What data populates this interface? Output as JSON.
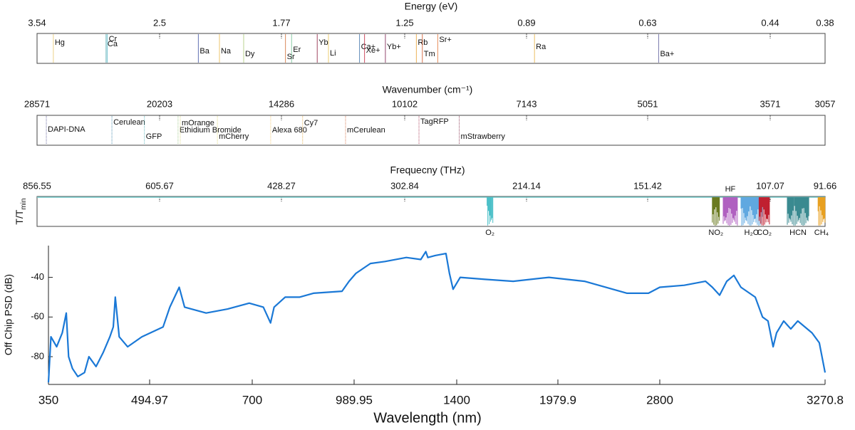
{
  "chart_data": [
    {
      "type": "markers",
      "title": "Energy (eV)",
      "xticks": [
        3.54,
        2.5,
        1.77,
        1.25,
        0.89,
        0.63,
        0.44,
        0.38
      ],
      "markers": [
        {
          "label": "Hg",
          "value": 3.38,
          "color": "#e8c86a"
        },
        {
          "label": "Cr",
          "value": 2.9,
          "color": "#5fb8c8"
        },
        {
          "label": "Ca",
          "value": 2.91,
          "color": "#3aa0a8"
        },
        {
          "label": "Ba",
          "value": 2.24,
          "color": "#3a4fa0"
        },
        {
          "label": "Na",
          "value": 2.11,
          "color": "#e8b84a"
        },
        {
          "label": "Dy",
          "value": 1.97,
          "color": "#a8c870"
        },
        {
          "label": "Er",
          "value": 1.72,
          "color": "#6cc090"
        },
        {
          "label": "Sr",
          "value": 1.75,
          "color": "#d06a30"
        },
        {
          "label": "Yb",
          "value": 1.6,
          "color": "#8a1a3a"
        },
        {
          "label": "Li",
          "value": 1.55,
          "color": "#e8c050"
        },
        {
          "label": "Ca+",
          "value": 1.42,
          "color": "#3a70a8"
        },
        {
          "label": "Xe+",
          "value": 1.4,
          "color": "#c0203a"
        },
        {
          "label": "Yb+",
          "value": 1.32,
          "color": "#7a1a4a"
        },
        {
          "label": "Rb",
          "value": 1.21,
          "color": "#e8a030"
        },
        {
          "label": "Tm",
          "value": 1.19,
          "color": "#d05020"
        },
        {
          "label": "Sr+",
          "value": 1.14,
          "color": "#e07030"
        },
        {
          "label": "Ra",
          "value": 0.87,
          "color": "#e8b040"
        },
        {
          "label": "Ba+",
          "value": 0.61,
          "color": "#5a5a9a"
        }
      ]
    },
    {
      "type": "markers",
      "title": "Wavenumber (cm⁻¹)",
      "xticks": [
        28571,
        20203,
        14286,
        10102,
        7143,
        5051,
        3571,
        3057
      ],
      "markers": [
        {
          "label": "DAPI-DNA",
          "value": 27830,
          "color": "#4a4a8a"
        },
        {
          "label": "Cerulean",
          "value": 23120,
          "color": "#2a7aa0"
        },
        {
          "label": "GFP",
          "value": 21090,
          "color": "#40a8b0"
        },
        {
          "label": "Ethidium Bromide",
          "value": 19170,
          "color": "#90c070"
        },
        {
          "label": "mOrange",
          "value": 19050,
          "color": "#d8d070"
        },
        {
          "label": "mCherry",
          "value": 17140,
          "color": "#d8d060"
        },
        {
          "label": "Alexa 680",
          "value": 14730,
          "color": "#f0c060"
        },
        {
          "label": "Cy7",
          "value": 13460,
          "color": "#e0a030"
        },
        {
          "label": "mCerulean",
          "value": 11930,
          "color": "#d06030"
        },
        {
          "label": "TagRFP",
          "value": 9700,
          "color": "#a02040"
        },
        {
          "label": "mStrawberry",
          "value": 8650,
          "color": "#7a1a3a"
        }
      ]
    },
    {
      "type": "bands",
      "title": "Frequecny (THz)",
      "ylabel": [
        "T/T",
        "min"
      ],
      "xticks": [
        856.55,
        605.67,
        428.27,
        302.84,
        214.14,
        151.42,
        107.07,
        91.66
      ],
      "bands": [
        {
          "label": "O₂",
          "range": [
            235.7,
            239.6
          ],
          "color": "#4cc0c8"
        },
        {
          "label": "NO₂",
          "range": [
            123.6,
            126.1
          ],
          "color": "#6a7a20"
        },
        {
          "label": "HF",
          "range": [
            117.5,
            122.3
          ],
          "color": "#b060c0"
        },
        {
          "label": "H₂O",
          "range": [
            109.5,
            116.3
          ],
          "color": "#60a8e0"
        },
        {
          "label": "CO₂",
          "range": [
            107.3,
            110.5
          ],
          "color": "#c02030"
        },
        {
          "label": "HCN",
          "range": [
            96.0,
            102.0
          ],
          "color": "#3a8a90"
        },
        {
          "label": "CH₄",
          "range": [
            91.7,
            93.5
          ],
          "color": "#e8a020"
        }
      ]
    },
    {
      "type": "line",
      "xscale": "log",
      "xlabel": "Wavelength (nm)",
      "ylabel": "Off Chip PSD (dB)",
      "color": "#1a78d6",
      "xlim": [
        350,
        3270.8
      ],
      "xticks": [
        350,
        494.97,
        700,
        989.95,
        1400,
        1979.9,
        2800,
        3270.8
      ],
      "ylim": [
        -94,
        -24
      ],
      "yticks": [
        -80,
        -60,
        -40
      ],
      "x": [
        350,
        353,
        360,
        367,
        372,
        375,
        380,
        387,
        396,
        402,
        412,
        422,
        432,
        437,
        440,
        446,
        459,
        482,
        518,
        530,
        547,
        557,
        599,
        644,
        693,
        727,
        745,
        754,
        783,
        822,
        862,
        950,
        973,
        996,
        1046,
        1099,
        1181,
        1240,
        1261,
        1270,
        1302,
        1350,
        1366,
        1383,
        1417,
        1543,
        1699,
        1920,
        2167,
        2505,
        2694,
        2800,
        2865,
        2923,
        2942,
        2962,
        2982,
        3002,
        3022,
        3063,
        3084,
        3100,
        3115,
        3125,
        3146,
        3167,
        3188,
        3231,
        3253,
        3270.8
      ],
      "values": [
        -93,
        -70,
        -75,
        -68,
        -58,
        -80,
        -86,
        -90,
        -88,
        -80,
        -85,
        -78,
        -70,
        -65,
        -50,
        -70,
        -75,
        -70,
        -65,
        -55,
        -45,
        -55,
        -58,
        -56,
        -53,
        -55,
        -63,
        -55,
        -50,
        -50,
        -48,
        -47,
        -42,
        -38,
        -33,
        -32,
        -30,
        -31,
        -27,
        -30,
        -29,
        -28,
        -38,
        -46,
        -40,
        -41,
        -42,
        -40,
        -42,
        -48,
        -48,
        -45,
        -44,
        -42,
        -45,
        -49,
        -42,
        -39,
        -45,
        -50,
        -60,
        -62,
        -75,
        -68,
        -62,
        -66,
        -62,
        -68,
        -73,
        -88
      ]
    }
  ]
}
